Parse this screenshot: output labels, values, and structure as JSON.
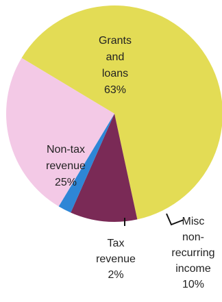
{
  "chart_data": {
    "type": "pie",
    "title": "",
    "slices": [
      {
        "label_lines": [
          "Grants",
          "and",
          "loans",
          "63%"
        ],
        "value": 63,
        "color": "#e3dc55"
      },
      {
        "label_lines": [
          "Misc",
          "non-",
          "recurring",
          "income",
          "10%"
        ],
        "value": 10,
        "color": "#7a2a56"
      },
      {
        "label_lines": [
          "Tax",
          "revenue",
          "2%"
        ],
        "value": 2,
        "color": "#2e86d6"
      },
      {
        "label_lines": [
          "Non-tax",
          "revenue",
          "25%"
        ],
        "value": 25,
        "color": "#f3c9e6"
      }
    ]
  }
}
